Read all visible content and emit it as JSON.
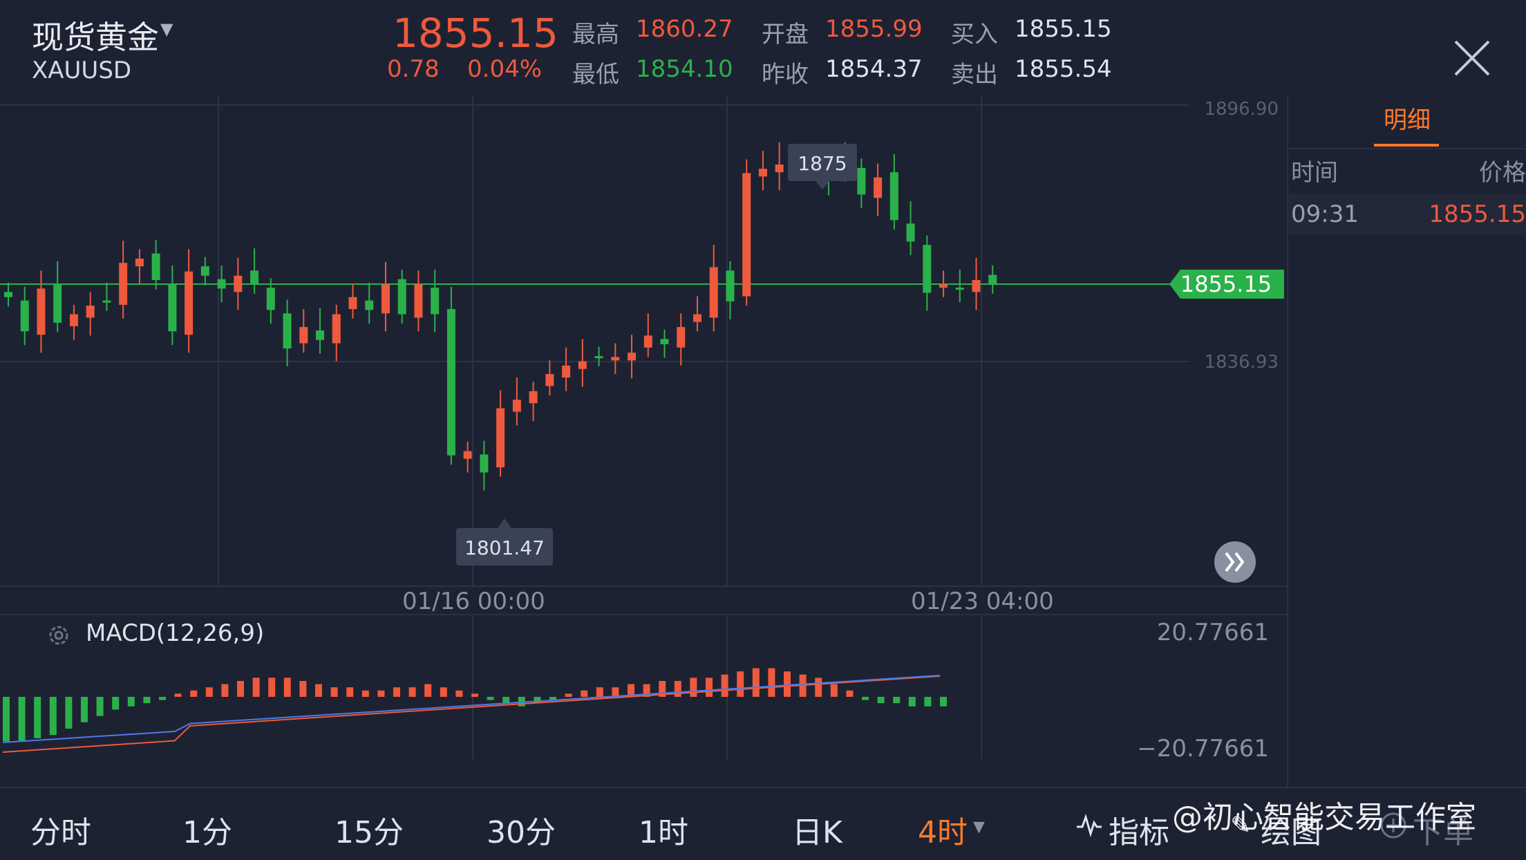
{
  "header": {
    "symbol_name": "现货黄金",
    "symbol_code": "XAUUSD",
    "last_price": "1855.15",
    "change_abs": "0.78",
    "change_pct": "0.04%",
    "high_label": "最高",
    "high_value": "1860.27",
    "low_label": "最低",
    "low_value": "1854.10",
    "open_label": "开盘",
    "open_value": "1855.99",
    "prev_close_label": "昨收",
    "prev_close_value": "1854.37",
    "bid_label": "买入",
    "bid_value": "1855.15",
    "ask_label": "卖出",
    "ask_value": "1855.54"
  },
  "chart": {
    "axis_top": "1896.90",
    "axis_mid": "1836.93",
    "current_price_tag": "1855.15",
    "high_marker": "1875",
    "low_marker": "1801.47",
    "date_labels": [
      "01/16 00:00",
      "01/23 04:00"
    ]
  },
  "macd": {
    "label": "MACD(12,26,9)",
    "axis_top": "20.77661",
    "axis_bottom": "−20.77661"
  },
  "detail": {
    "tab_label": "明细",
    "col_time": "时间",
    "col_price": "价格",
    "rows": [
      {
        "time": "09:31",
        "price": "1855.15"
      }
    ]
  },
  "timeframes": [
    "分时",
    "1分",
    "15分",
    "30分",
    "1时",
    "日K",
    "4时"
  ],
  "active_timeframe": "4时",
  "tools": {
    "indicator": "指标",
    "draw": "绘图",
    "order": "下单"
  },
  "watermark": "@初心智能交易工作室",
  "colors": {
    "up": "#ef5a3c",
    "down": "#2bb14a",
    "bg": "#1d2233",
    "accent": "#ff7a2a"
  }
}
